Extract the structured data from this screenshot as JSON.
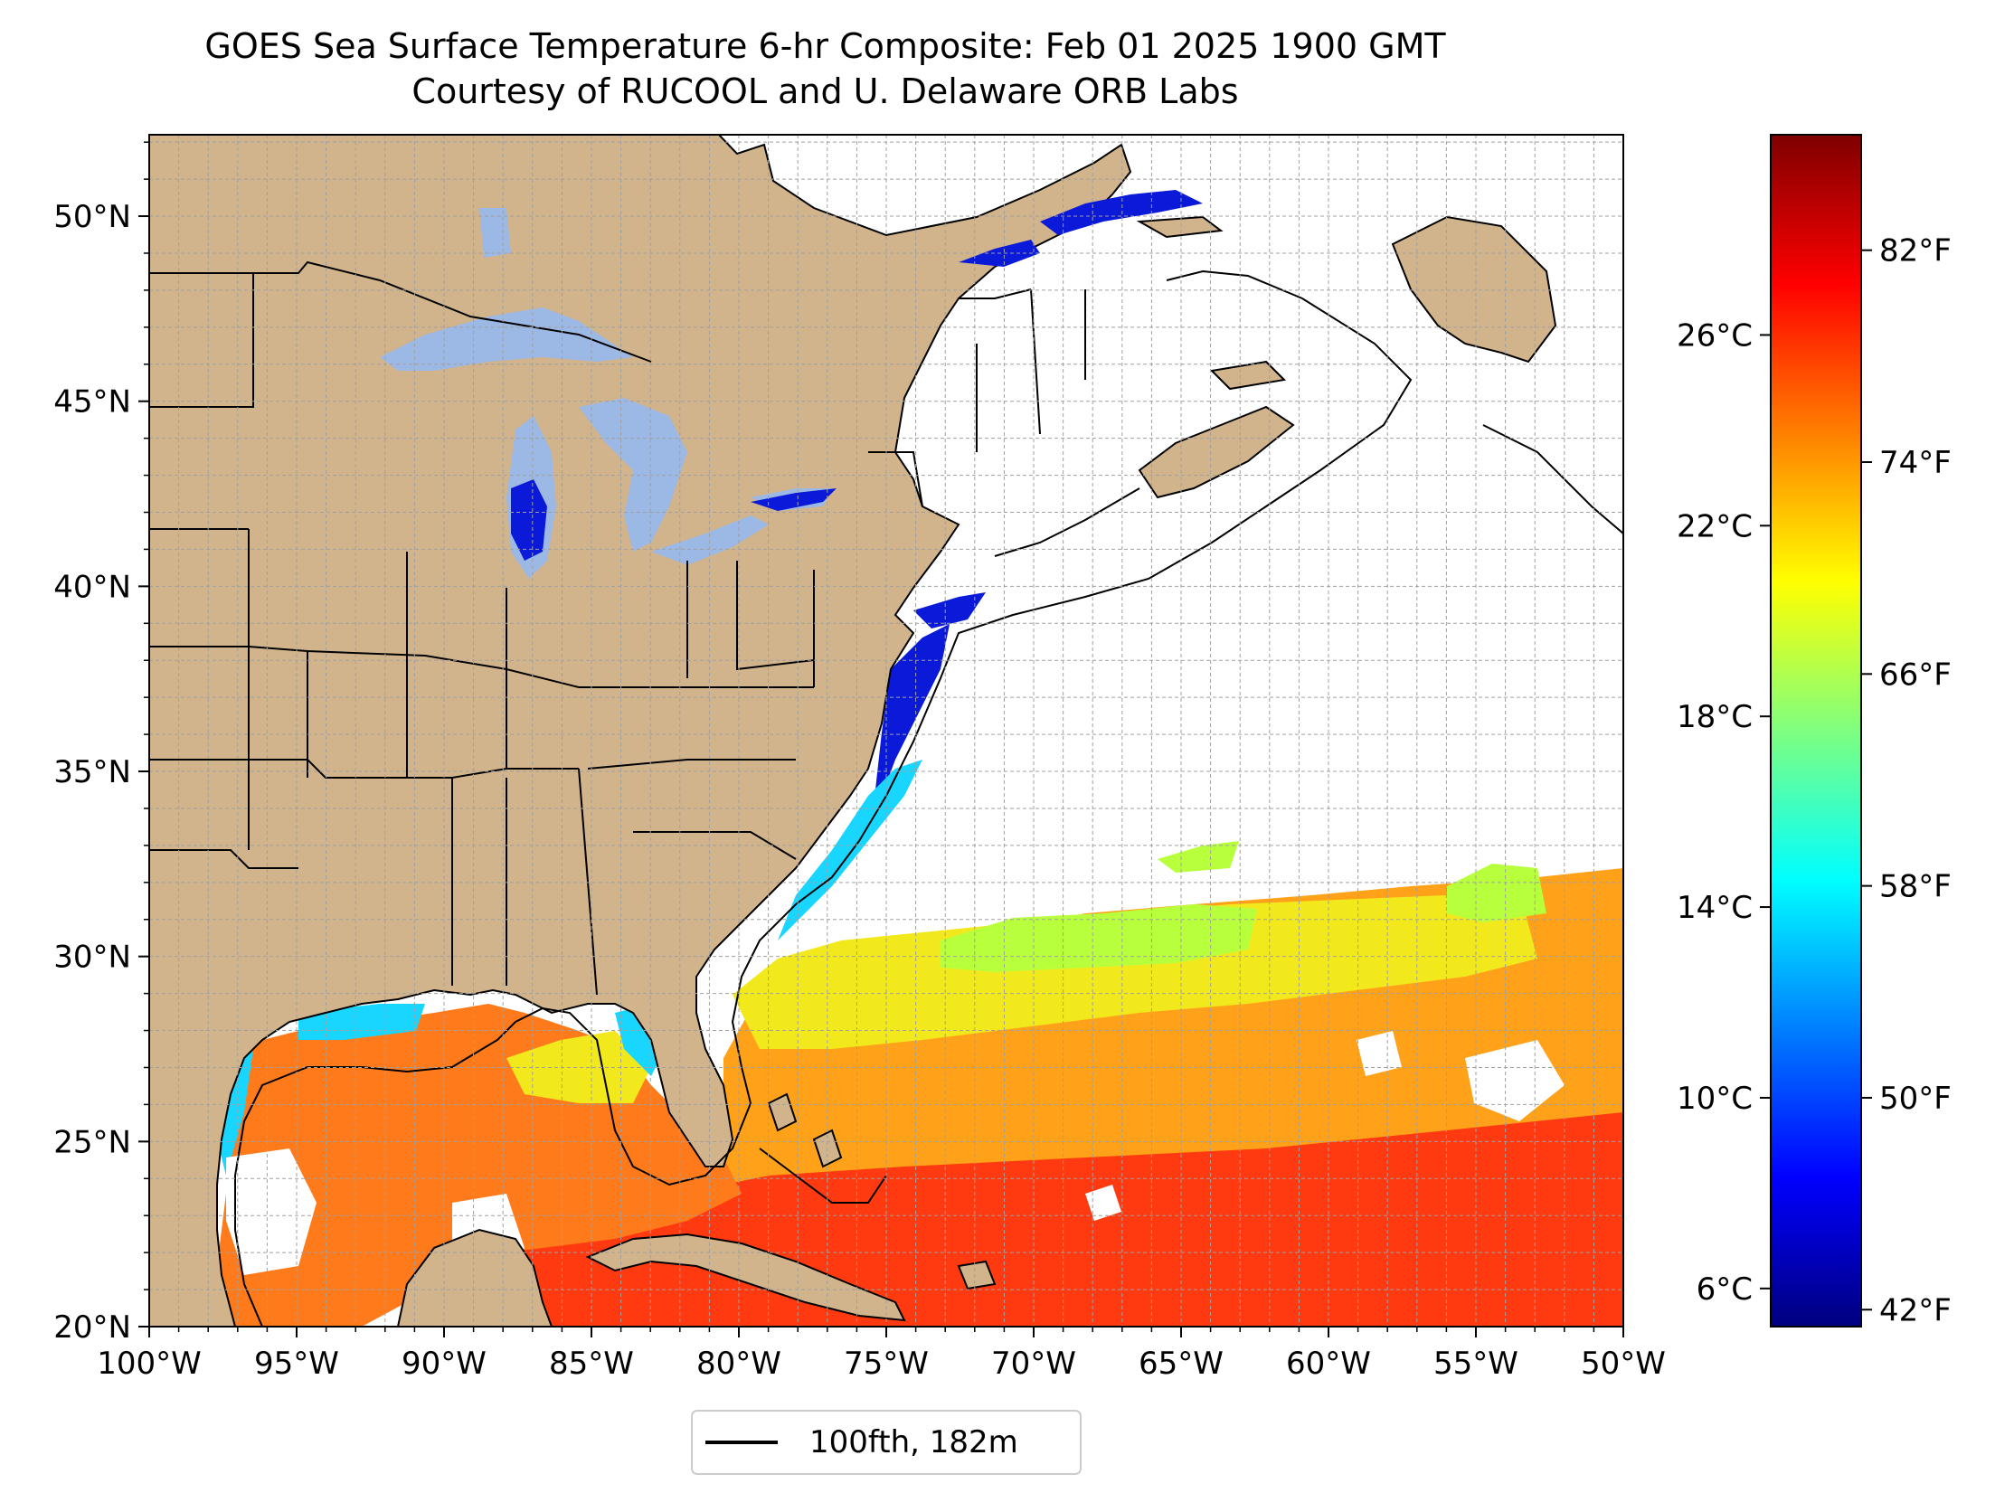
{
  "title": "GOES Sea Surface Temperature 6-hr Composite: Feb 01 2025 1900 GMT",
  "subtitle": "Courtesy of RUCOOL and U. Delaware ORB Labs",
  "map": {
    "extent": {
      "lon_min": -100,
      "lon_max": -50,
      "lat_min": 20,
      "lat_max": 52.2
    },
    "lat_ticks": [
      {
        "value": 50,
        "label": "50°N"
      },
      {
        "value": 45,
        "label": "45°N"
      },
      {
        "value": 40,
        "label": "40°N"
      },
      {
        "value": 35,
        "label": "35°N"
      },
      {
        "value": 30,
        "label": "30°N"
      },
      {
        "value": 25,
        "label": "25°N"
      },
      {
        "value": 20,
        "label": "20°N"
      }
    ],
    "lon_ticks": [
      {
        "value": -100,
        "label": "100°W"
      },
      {
        "value": -95,
        "label": "95°W"
      },
      {
        "value": -90,
        "label": "90°W"
      },
      {
        "value": -85,
        "label": "85°W"
      },
      {
        "value": -80,
        "label": "80°W"
      },
      {
        "value": -75,
        "label": "75°W"
      },
      {
        "value": -70,
        "label": "70°W"
      },
      {
        "value": -65,
        "label": "65°W"
      },
      {
        "value": -60,
        "label": "60°W"
      },
      {
        "value": -55,
        "label": "55°W"
      },
      {
        "value": -50,
        "label": "50°W"
      }
    ],
    "gridlines": true,
    "grid_spacing_deg": 1,
    "colors": {
      "land": "#d2b48c",
      "lakes": "#9cb8e4",
      "ocean_no_data": "#ffffff",
      "borders": "#000000",
      "grid": "#a0a0a0"
    },
    "sst_zones": [
      {
        "zone": "gulf-of-mexico",
        "color": "#ff7a1a"
      },
      {
        "zone": "caribbean-south",
        "color": "#ff3a10"
      },
      {
        "zone": "sargasso-warm",
        "color": "#ffa21a"
      },
      {
        "zone": "subtropical-front",
        "color": "#f2e91c"
      },
      {
        "zone": "cool-slope",
        "color": "#b8ff3c"
      },
      {
        "zone": "shelf-cold",
        "color": "#0a1ad8"
      },
      {
        "zone": "carolina-shelf",
        "color": "#18d6ff"
      }
    ]
  },
  "legend": {
    "line_label": "100fth, 182m",
    "position": "bottom-center"
  },
  "colorbar": {
    "colormap": "jet",
    "colors": [
      "#00007f",
      "#0000ff",
      "#007fff",
      "#00ffff",
      "#7fff7f",
      "#ffff00",
      "#ff7f00",
      "#ff0000",
      "#7f0000"
    ],
    "range_c": [
      5.2,
      30.2
    ],
    "celsius_ticks": [
      {
        "value": 6,
        "label": "6°C"
      },
      {
        "value": 10,
        "label": "10°C"
      },
      {
        "value": 14,
        "label": "14°C"
      },
      {
        "value": 18,
        "label": "18°C"
      },
      {
        "value": 22,
        "label": "22°C"
      },
      {
        "value": 26,
        "label": "26°C"
      }
    ],
    "fahrenheit_ticks": [
      {
        "value": 42,
        "label": "42°F"
      },
      {
        "value": 50,
        "label": "50°F"
      },
      {
        "value": 58,
        "label": "58°F"
      },
      {
        "value": 66,
        "label": "66°F"
      },
      {
        "value": 74,
        "label": "74°F"
      },
      {
        "value": 82,
        "label": "82°F"
      }
    ]
  }
}
